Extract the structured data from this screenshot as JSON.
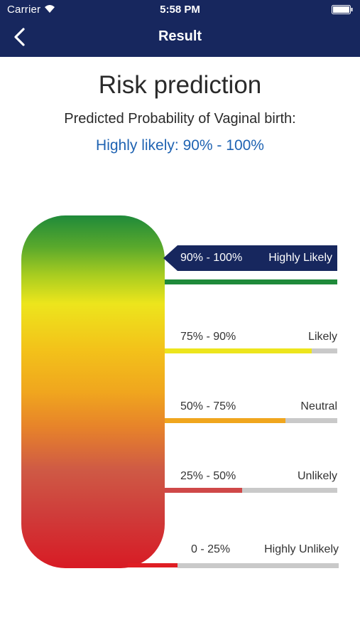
{
  "status_bar": {
    "carrier": "Carrier",
    "time": "5:58 PM"
  },
  "nav": {
    "title": "Result",
    "back_icon": "chevron-left-icon"
  },
  "content": {
    "heading": "Risk prediction",
    "subheading": "Predicted Probability of Vaginal birth:",
    "result": "Highly likely: 90% - 100%"
  },
  "scale": {
    "selected": "highly_likely",
    "levels": [
      {
        "key": "highly_likely",
        "range": "90% - 100%",
        "label": "Highly Likely",
        "color": "#1f8a3a",
        "fill": 1.0
      },
      {
        "key": "likely",
        "range": "75% - 90%",
        "label": "Likely",
        "color": "#ede51c",
        "fill": 0.85
      },
      {
        "key": "neutral",
        "range": "50% - 75%",
        "label": "Neutral",
        "color": "#f0a61e",
        "fill": 0.7
      },
      {
        "key": "unlikely",
        "range": "25% - 50%",
        "label": "Unlikely",
        "color": "#cf4848",
        "fill": 0.45
      },
      {
        "key": "highly_unlikely",
        "range": "0 - 25%",
        "label": "Highly Unlikely",
        "color": "#df1e24",
        "fill": 0.0
      }
    ]
  },
  "colors": {
    "nav_bg": "#17275e",
    "result_text": "#1f63b2",
    "track": "#c9c9c9"
  }
}
